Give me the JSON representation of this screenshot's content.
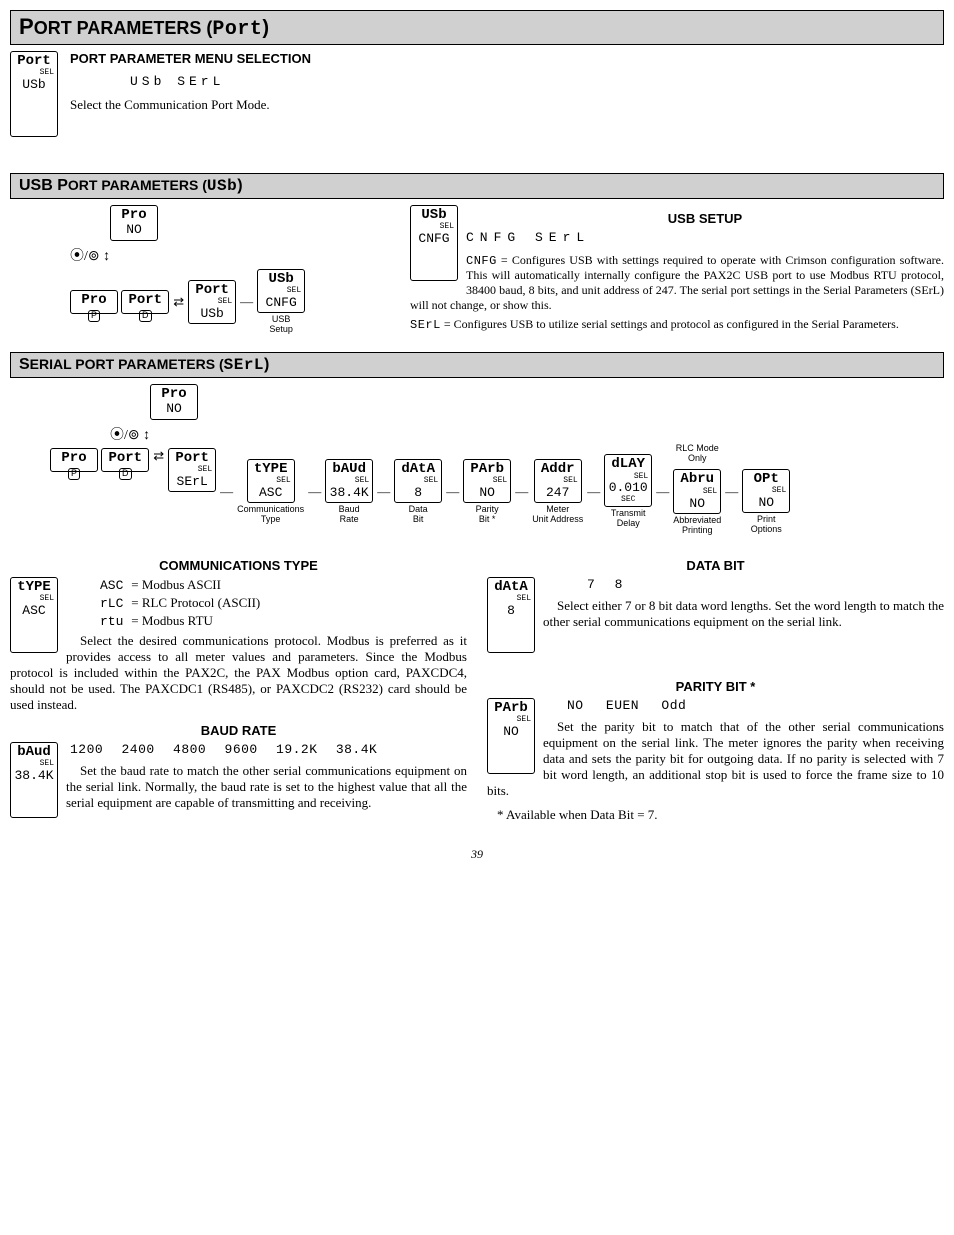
{
  "header_main": {
    "prefix": "P",
    "text": "ORT PARAMETERS (",
    "seg": "Port",
    "suffix": ")"
  },
  "port_menu": {
    "title": "PORT PARAMETER MENU SELECTION",
    "box": {
      "l1": "Port",
      "sel": "SEL",
      "l2": "USb"
    },
    "opts": "USb   SErL",
    "text": "Select the Communication Port Mode."
  },
  "usb_header": {
    "pre1": "USB P",
    "rest": "ORT PARAMETERS (",
    "seg": "USb",
    "suffix": ")"
  },
  "usb_flow": {
    "top": {
      "l1": "Pro",
      "l2": "NO"
    },
    "nav": "⦿/⊚",
    "left_pair": {
      "t1": "Pro",
      "t2": "Port"
    },
    "mid": {
      "l1": "Port",
      "sel": "SEL",
      "l2": "USb"
    },
    "right": {
      "l1": "USb",
      "sel": "SEL",
      "l2": "CNFG"
    },
    "label": "USB\nSetup"
  },
  "usb_setup": {
    "box": {
      "l1": "USb",
      "sel": "SEL",
      "l2": "CNFG"
    },
    "title": "USB SETUP",
    "opts": "CNFG   SErL",
    "defs": [
      {
        "k": "CNFG",
        "v": "Configures USB with settings required to operate with Crimson configuration software. This will automatically internally configure the PAX2C USB port to use Modbus RTU protocol, 38400 baud, 8 bits, and unit address of 247. The serial port settings in the Serial Parameters (SErL) will not change, or show this."
      },
      {
        "k": "SErL",
        "v": "Configures USB to utilize serial settings and protocol as configured in the Serial Parameters."
      }
    ]
  },
  "serial_header": {
    "pre1": "S",
    "rest": "ERIAL PORT PARAMETERS (",
    "seg": "SErL",
    "suffix": ")"
  },
  "serial_flow": {
    "top": {
      "l1": "Pro",
      "l2": "NO"
    },
    "left": {
      "t1": "Pro",
      "t2": "Port"
    },
    "mid": {
      "l1": "Port",
      "sel": "SEL",
      "l2": "SErL"
    },
    "rlc_label": "RLC Mode\nOnly",
    "boxes": [
      {
        "l1": "tYPE",
        "sel": "SEL",
        "l2": "ASC",
        "lbl": "Communications\nType"
      },
      {
        "l1": "bAUd",
        "sel": "SEL",
        "l2": "38.4K",
        "lbl": "Baud\nRate"
      },
      {
        "l1": "dAtA",
        "sel": "SEL",
        "l2": "8",
        "lbl": "Data\nBit"
      },
      {
        "l1": "PArb",
        "sel": "SEL",
        "l2": "NO",
        "lbl": "Parity\nBit *"
      },
      {
        "l1": "Addr",
        "sel": "SEL",
        "l2": "247",
        "lbl": "Meter\nUnit Address"
      },
      {
        "l1": "dLAY",
        "sel": "SEL",
        "l2": "0.010",
        "sub": "SEC",
        "lbl": "Transmit\nDelay"
      },
      {
        "l1": "Abru",
        "sel": "SEL",
        "l2": "NO",
        "lbl": "Abbreviated\nPrinting",
        "rlc": true
      },
      {
        "l1": "OPt",
        "sel": "SEL",
        "l2": "NO",
        "lbl": "Print\nOptions",
        "rlc": true
      }
    ]
  },
  "comm_type": {
    "title": "COMMUNICATIONS TYPE",
    "box": {
      "l1": "tYPE",
      "sel": "SEL",
      "l2": "ASC"
    },
    "defs": [
      {
        "k": "ASC",
        "v": "Modbus ASCII"
      },
      {
        "k": "rLC",
        "v": "RLC Protocol (ASCII)"
      },
      {
        "k": "rtu",
        "v": "Modbus RTU"
      }
    ],
    "text": "Select the desired communications protocol. Modbus is preferred as it provides access to all meter values and parameters. Since the Modbus protocol is included within the PAX2C, the PAX Modbus option card, PAXCDC4, should not be used. The PAXCDC1 (RS485), or PAXCDC2 (RS232) card should be used instead."
  },
  "baud": {
    "title": "BAUD RATE",
    "box": {
      "l1": "bAud",
      "sel": "SEL",
      "l2": "38.4K"
    },
    "opts": "1200  2400  4800  9600  19.2K  38.4K",
    "text": "Set the baud rate to match the other serial communications equipment on the serial link. Normally, the baud rate is set to the highest value that all the serial equipment are capable of transmitting and receiving."
  },
  "data_bit": {
    "title": "DATA BIT",
    "box": {
      "l1": "dAtA",
      "sel": "SEL",
      "l2": "8"
    },
    "opts": "7    8",
    "text": "Select either 7 or 8 bit data word lengths. Set the word length to match the other serial communications equipment on the serial link."
  },
  "parity": {
    "title": "PARITY BIT *",
    "box": {
      "l1": "PArb",
      "sel": "SEL",
      "l2": "NO"
    },
    "opts": "NO   EUEN   Odd",
    "text": "Set the parity bit to match that of the other serial communications equipment on the serial link. The meter ignores the parity when receiving data and sets the parity bit for outgoing data. If no parity is selected with 7 bit word length, an additional stop bit is used to force the frame size to 10 bits.",
    "note": "* Available when Data Bit = 7."
  },
  "pagenum": "39"
}
